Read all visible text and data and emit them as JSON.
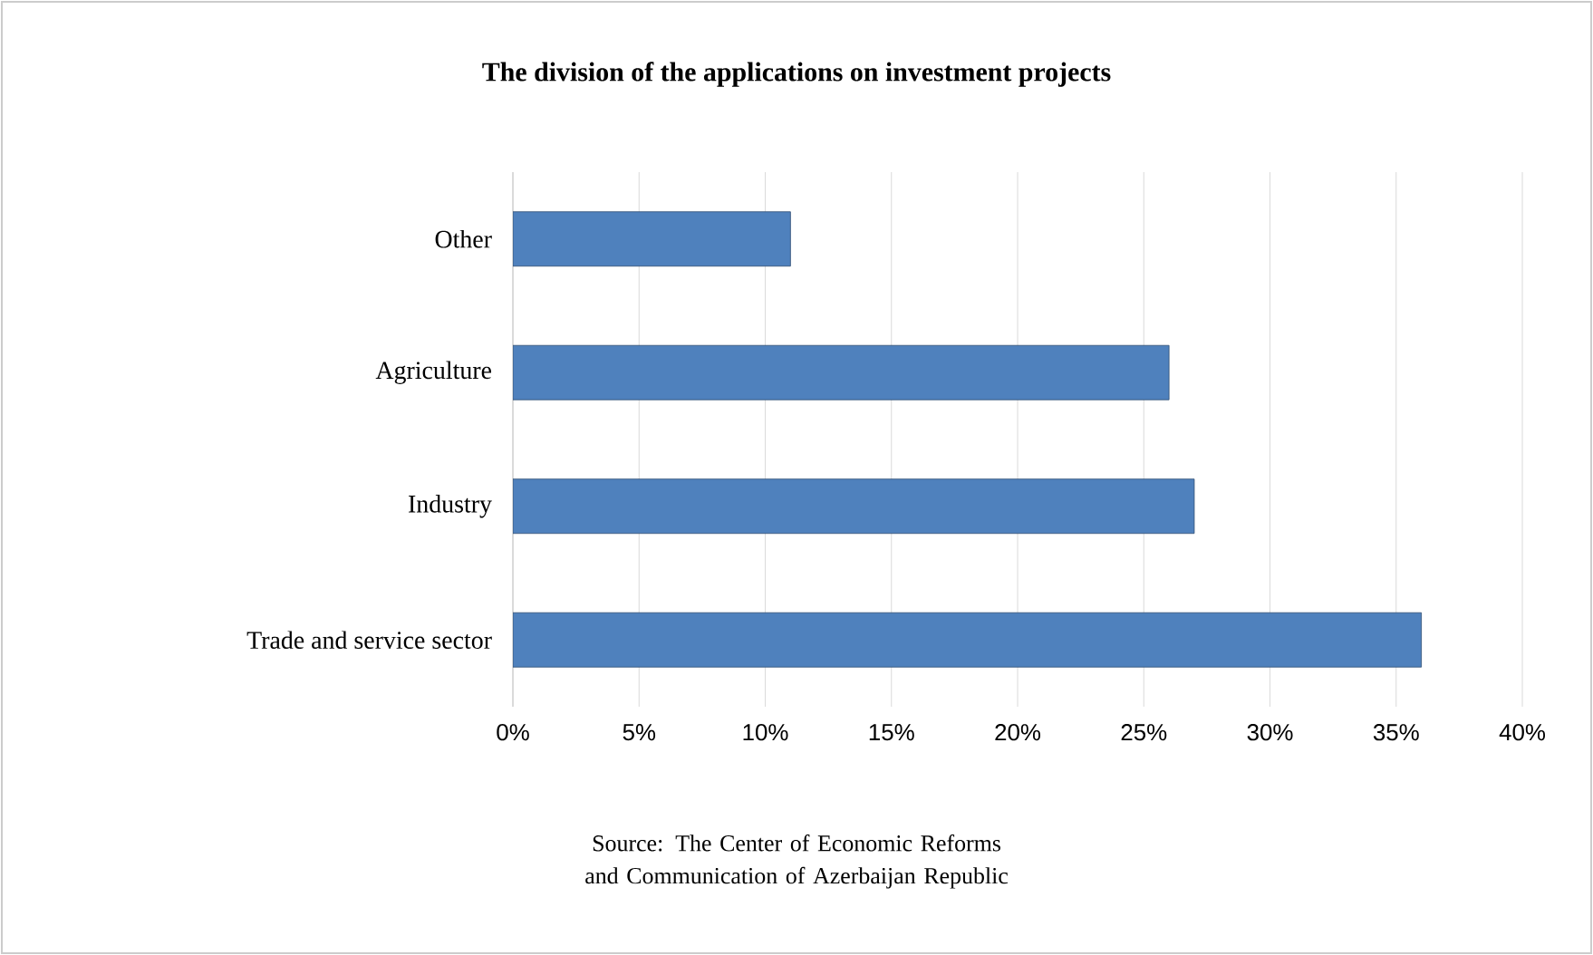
{
  "chart_data": {
    "type": "bar",
    "orientation": "horizontal",
    "title": "The division of the applications on investment projects",
    "categories": [
      "Other",
      "Agriculture",
      "Industry",
      "Trade and service sector"
    ],
    "values": [
      11,
      26,
      27,
      36
    ],
    "color": "#4f81bd",
    "xlim": [
      0,
      40
    ],
    "xticks": [
      {
        "value": 0,
        "label": "0%"
      },
      {
        "value": 5,
        "label": "5%"
      },
      {
        "value": 10,
        "label": "10%"
      },
      {
        "value": 15,
        "label": "15%"
      },
      {
        "value": 20,
        "label": "20%"
      },
      {
        "value": 25,
        "label": "25%"
      },
      {
        "value": 30,
        "label": "30%"
      },
      {
        "value": 35,
        "label": "35%"
      },
      {
        "value": 40,
        "label": "40%"
      }
    ],
    "grid": "x",
    "annotations": [
      "Source: The Center of Economic Reforms and Communication of Azerbaijan Republic"
    ]
  }
}
